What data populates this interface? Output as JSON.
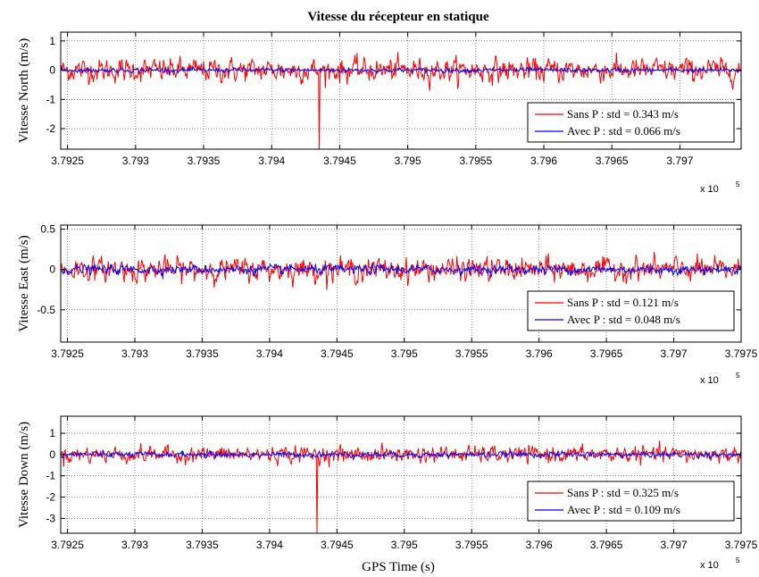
{
  "figure": {
    "title": "Vitesse du récepteur en statique",
    "xlabel": "GPS Time (s)"
  },
  "chart_data": [
    {
      "type": "line",
      "title": "Vitesse du récepteur en statique",
      "ylabel": "Vitesse North (m/s)",
      "xlabel": "",
      "x_exponent_label": "x 10",
      "x_exponent_power": "5",
      "x_ticks": [
        "3.7925",
        "3.793",
        "3.7935",
        "3.794",
        "3.7945",
        "3.795",
        "3.7955",
        "3.796",
        "3.7965",
        "3.797"
      ],
      "x_tick_values": [
        3.7925,
        3.793,
        3.7935,
        3.794,
        3.7945,
        3.795,
        3.7955,
        3.796,
        3.7965,
        3.797
      ],
      "y_ticks": [
        "1",
        "0",
        "-1",
        "-2"
      ],
      "y_tick_values": [
        1,
        0,
        -1,
        -2
      ],
      "xlim": [
        3.79245,
        3.79745
      ],
      "ylim": [
        -2.7,
        1.3
      ],
      "grid": true,
      "legend_position": "bottom-right",
      "series": [
        {
          "name": "Sans P : std = 0.343 m/s",
          "color": "#ff0000",
          "noise": 0.34,
          "spike": {
            "x": 3.79435,
            "y": -2.7
          }
        },
        {
          "name": "Avec P : std = 0.066 m/s",
          "color": "#0000ff",
          "noise": 0.066
        }
      ]
    },
    {
      "type": "line",
      "ylabel": "Vitesse East (m/s)",
      "xlabel": "",
      "x_exponent_label": "x 10",
      "x_exponent_power": "5",
      "x_ticks": [
        "3.7925",
        "3.793",
        "3.7935",
        "3.794",
        "3.7945",
        "3.795",
        "3.7955",
        "3.796",
        "3.7965",
        "3.797",
        "3.7975"
      ],
      "x_tick_values": [
        3.7925,
        3.793,
        3.7935,
        3.794,
        3.7945,
        3.795,
        3.7955,
        3.796,
        3.7965,
        3.797,
        3.7975
      ],
      "y_ticks": [
        "0.5",
        "0",
        "-0.5"
      ],
      "y_tick_values": [
        0.5,
        0,
        -0.5
      ],
      "xlim": [
        3.79245,
        3.7975
      ],
      "ylim": [
        -0.9,
        0.55
      ],
      "grid": true,
      "legend_position": "bottom-right",
      "series": [
        {
          "name": "Sans P : std = 0.121 m/s",
          "color": "#ff0000",
          "noise": 0.12
        },
        {
          "name": "Avec P : std = 0.048 m/s",
          "color": "#0000ff",
          "noise": 0.048
        }
      ]
    },
    {
      "type": "line",
      "ylabel": "Vitesse Down (m/s)",
      "xlabel": "GPS Time (s)",
      "x_exponent_label": "x 10",
      "x_exponent_power": "5",
      "x_ticks": [
        "3.7925",
        "3.793",
        "3.7935",
        "3.794",
        "3.7945",
        "3.795",
        "3.7955",
        "3.796",
        "3.7965",
        "3.797",
        "3.7975"
      ],
      "x_tick_values": [
        3.7925,
        3.793,
        3.7935,
        3.794,
        3.7945,
        3.795,
        3.7955,
        3.796,
        3.7965,
        3.797,
        3.7975
      ],
      "y_ticks": [
        "1",
        "0",
        "-1",
        "-2",
        "-3"
      ],
      "y_tick_values": [
        1,
        0,
        -1,
        -2,
        -3
      ],
      "xlim": [
        3.79245,
        3.7975
      ],
      "ylim": [
        -3.7,
        1.8
      ],
      "grid": true,
      "legend_position": "bottom-right",
      "series": [
        {
          "name": "Sans P : std = 0.325 m/s",
          "color": "#ff0000",
          "noise": 0.32,
          "spike": {
            "x": 3.79435,
            "y": -3.7
          }
        },
        {
          "name": "Avec P : std = 0.109 m/s",
          "color": "#0000ff",
          "noise": 0.109
        }
      ]
    }
  ]
}
